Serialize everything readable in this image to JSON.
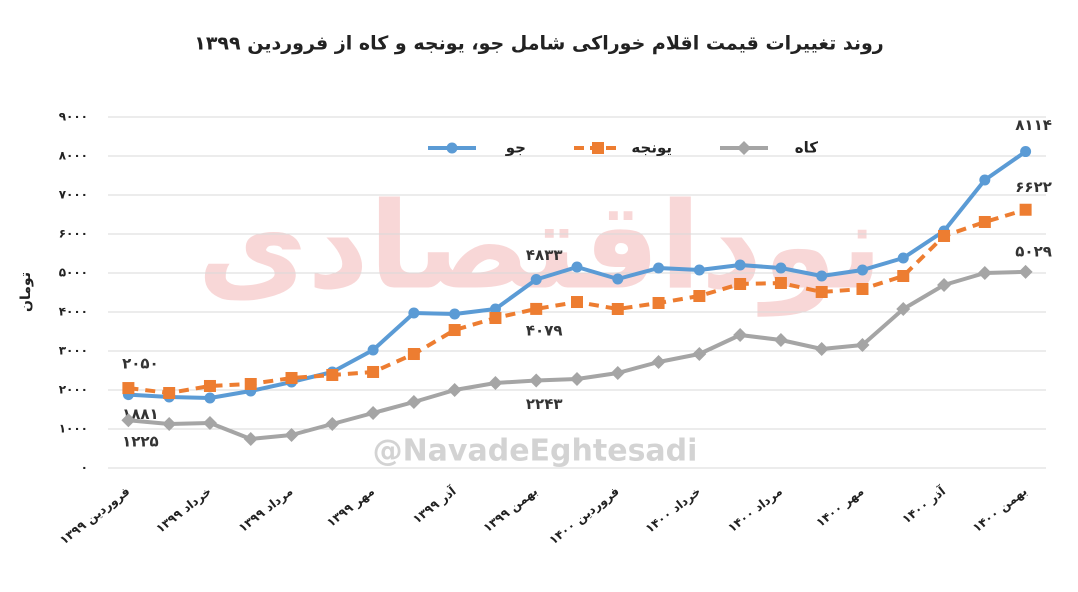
{
  "chart_data": {
    "type": "line",
    "title": "روند تغییرات قیمت اقلام خوراکی شامل جو، یونجه و کاه از فروردین ۱۳۹۹",
    "y_label": "تومان",
    "annotations": [
      "نوداقتصادی",
      "@NavadeEghtesadi"
    ],
    "categories": [
      "فروردین ۱۳۹۹",
      null,
      "خرداد ۱۳۹۹",
      null,
      "مرداد ۱۳۹۹",
      null,
      "مهر ۱۳۹۹",
      null,
      "آذر ۱۳۹۹",
      null,
      "بهمن ۱۳۹۹",
      null,
      "فروردین ۱۴۰۰",
      null,
      "خرداد ۱۴۰۰",
      null,
      "مرداد ۱۴۰۰",
      null,
      "مهر ۱۴۰۰",
      null,
      "آذر ۱۴۰۰",
      null,
      "بهمن ۱۴۰۰"
    ],
    "series": [
      {
        "name": "جو",
        "color": "#5b9bd5",
        "marker": "circle",
        "dashed": false,
        "values": [
          1881,
          1820,
          1795,
          1974,
          2205,
          2462,
          3026,
          3974,
          3949,
          4077,
          4833,
          5154,
          4846,
          5128,
          5077,
          5205,
          5128,
          4923,
          5077,
          5385,
          6077,
          7385,
          8114
        ],
        "value_labels": [
          "۱۸۸۱",
          null,
          null,
          null,
          null,
          null,
          null,
          null,
          null,
          null,
          "۴۸۳۳",
          null,
          null,
          null,
          null,
          null,
          null,
          null,
          null,
          null,
          null,
          null,
          "۸۱۱۴"
        ]
      },
      {
        "name": "یونجه",
        "color": "#ed7d31",
        "marker": "square",
        "dashed": true,
        "values": [
          2050,
          1923,
          2103,
          2154,
          2308,
          2385,
          2462,
          2923,
          3538,
          3846,
          4079,
          4256,
          4077,
          4231,
          4410,
          4718,
          4744,
          4513,
          4590,
          4923,
          5949,
          6308,
          6622
        ],
        "value_labels": [
          "۲۰۵۰",
          null,
          null,
          null,
          null,
          null,
          null,
          null,
          null,
          null,
          "۴۰۷۹",
          null,
          null,
          null,
          null,
          null,
          null,
          null,
          null,
          null,
          null,
          null,
          "۶۶۲۲"
        ]
      },
      {
        "name": "کاه",
        "color": "#a5a5a5",
        "marker": "diamond",
        "dashed": false,
        "values": [
          1225,
          1128,
          1154,
          744,
          846,
          1128,
          1410,
          1692,
          2000,
          2179,
          2243,
          2282,
          2436,
          2718,
          2923,
          3410,
          3282,
          3051,
          3154,
          4077,
          4692,
          5000,
          5029
        ],
        "value_labels": [
          "۱۲۲۵",
          null,
          null,
          null,
          null,
          null,
          null,
          null,
          null,
          null,
          "۲۲۴۳",
          null,
          null,
          null,
          null,
          null,
          null,
          null,
          null,
          null,
          null,
          null,
          "۵۰۲۹"
        ]
      }
    ],
    "ylim": [
      0,
      9000
    ],
    "yticks": [
      {
        "value": 0,
        "label": "۰"
      },
      {
        "value": 1000,
        "label": "۱۰۰۰"
      },
      {
        "value": 2000,
        "label": "۲۰۰۰"
      },
      {
        "value": 3000,
        "label": "۳۰۰۰"
      },
      {
        "value": 4000,
        "label": "۴۰۰۰"
      },
      {
        "value": 5000,
        "label": "۵۰۰۰"
      },
      {
        "value": 6000,
        "label": "۶۰۰۰"
      },
      {
        "value": 7000,
        "label": "۷۰۰۰"
      },
      {
        "value": 8000,
        "label": "۸۰۰۰"
      },
      {
        "value": 9000,
        "label": "۹۰۰۰"
      }
    ],
    "grid": true,
    "legend": "top"
  }
}
